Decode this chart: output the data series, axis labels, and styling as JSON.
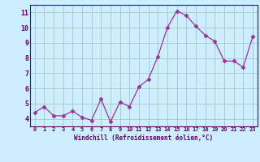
{
  "x": [
    0,
    1,
    2,
    3,
    4,
    5,
    6,
    7,
    8,
    9,
    10,
    11,
    12,
    13,
    14,
    15,
    16,
    17,
    18,
    19,
    20,
    21,
    22,
    23
  ],
  "y": [
    4.4,
    4.8,
    4.2,
    4.2,
    4.5,
    4.1,
    3.9,
    5.3,
    3.8,
    5.1,
    4.8,
    6.1,
    6.6,
    8.1,
    10.0,
    11.1,
    10.8,
    10.1,
    9.5,
    9.1,
    7.8,
    7.8,
    7.4,
    9.4
  ],
  "xlabel": "Windchill (Refroidissement éolien,°C)",
  "ylim": [
    3.5,
    11.5
  ],
  "xlim": [
    -0.5,
    23.5
  ],
  "yticks": [
    4,
    5,
    6,
    7,
    8,
    9,
    10,
    11
  ],
  "xticks": [
    0,
    1,
    2,
    3,
    4,
    5,
    6,
    7,
    8,
    9,
    10,
    11,
    12,
    13,
    14,
    15,
    16,
    17,
    18,
    19,
    20,
    21,
    22,
    23
  ],
  "line_color": "#993399",
  "marker": "D",
  "bg_color": "#cceeff",
  "grid_color": "#aacccc",
  "axis_label_color": "#660066",
  "tick_color": "#660066",
  "spine_color": "#660066"
}
